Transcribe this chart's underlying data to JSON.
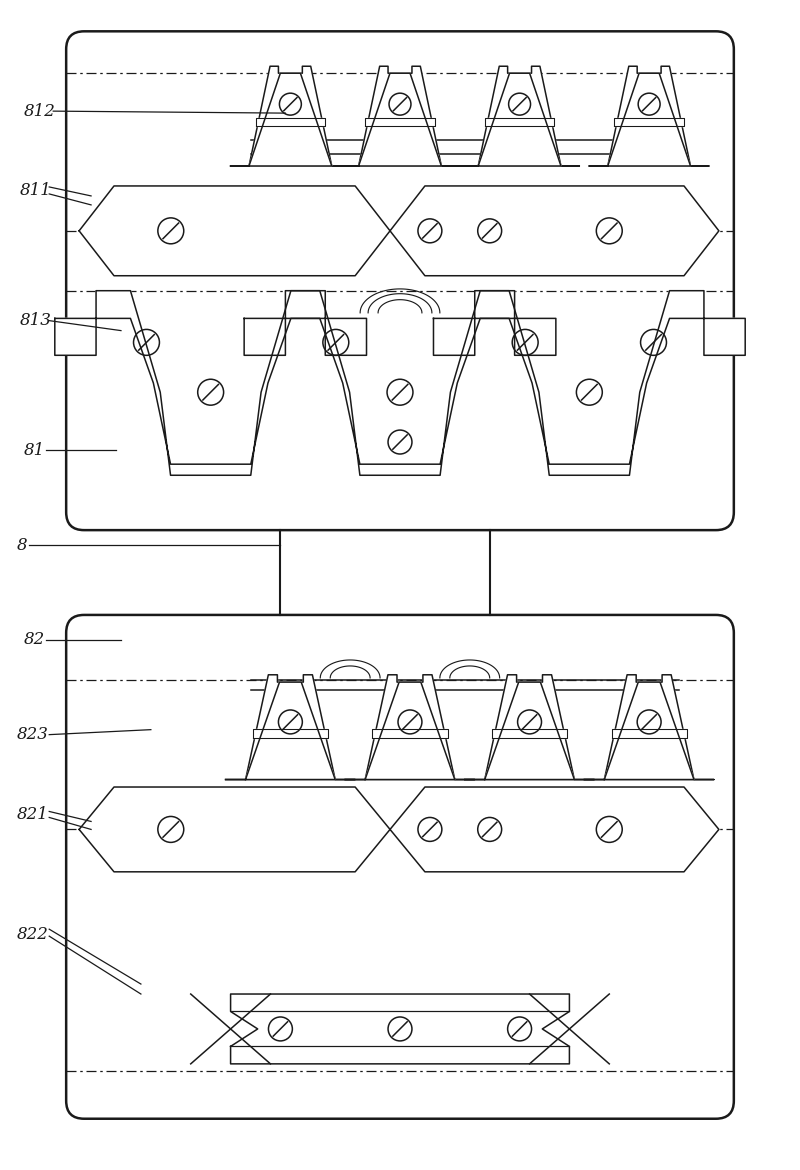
{
  "bg_color": "#ffffff",
  "line_color": "#1a1a1a",
  "figure_width": 8.0,
  "figure_height": 11.7,
  "lw": 1.1
}
